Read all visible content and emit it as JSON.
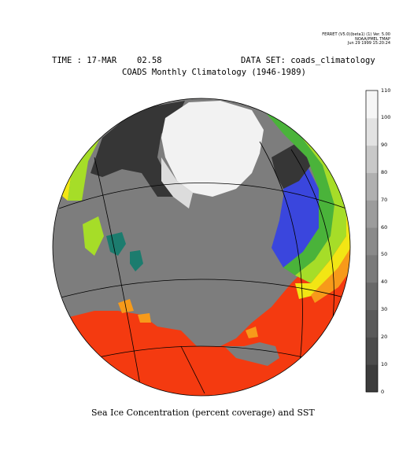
{
  "stamp": {
    "line1": "FERRET (V5.0)(beta1) (1) Ver. 5.00",
    "line2": "NOAA/PMEL TMAP",
    "line3": "Jun 29 1999 15:20:24"
  },
  "header": {
    "time_label": "TIME : 17-MAR",
    "time_value": "02.58",
    "dataset": "DATA SET: coads_climatology",
    "title": "COADS Monthly Climatology (1946-1989)"
  },
  "caption": "Sea Ice Concentration (percent coverage) and SST",
  "colorbar": {
    "ticks": [
      "0",
      "10",
      "20",
      "30",
      "40",
      "50",
      "60",
      "70",
      "80",
      "90",
      "100",
      "110"
    ],
    "colors": [
      "#303030",
      "#3c3c3c",
      "#4c4c4c",
      "#5a5a5a",
      "#686868",
      "#7a7a7a",
      "#8a8a8a",
      "#9c9c9c",
      "#b0b0b0",
      "#c8c8c8",
      "#e2e2e2",
      "#f6f6f6"
    ]
  },
  "map_colors": {
    "land": "#7d7d7d",
    "ice_high": "#f2f2f2",
    "ice_mid": "#dcdcdc",
    "ice_dark": "#363636",
    "sst_warm": "#f43a10",
    "sst_orange": "#f79a1a",
    "sst_yellow": "#f2e614",
    "sst_lime": "#a6dd28",
    "sst_green": "#4ab33a",
    "sst_teal": "#1c7c6e",
    "sst_blue": "#3a46dd"
  }
}
